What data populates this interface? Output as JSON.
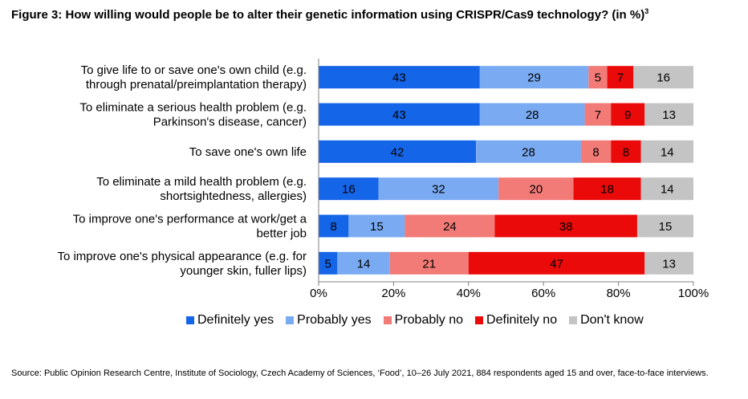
{
  "figure": {
    "title": "Figure 3: How willing would people be to alter their genetic information using CRISPR/Cas9 technology? (in %)",
    "title_sup": "3",
    "source": "Source: Public Opinion Research Centre, Institute of Sociology, Czech Academy of Sciences, ‘Food’, 10–26 July 2021, 884 respondents aged 15 and over, face-to-face interviews."
  },
  "chart_data": {
    "type": "bar",
    "orientation": "horizontal",
    "stacked": true,
    "categories": [
      [
        "To give life to or save one's own child (e.g.",
        "through prenatal/preimplantation therapy)"
      ],
      [
        "To eliminate a serious health problem (e.g.",
        "Parkinson's disease, cancer)"
      ],
      [
        "To save one's own life"
      ],
      [
        "To eliminate a mild health problem (e.g.",
        "shortsightedness, allergies)"
      ],
      [
        "To improve one's performance at work/get a",
        "better job"
      ],
      [
        "To improve one's physical appearance (e.g. for",
        "younger skin, fuller lips)"
      ]
    ],
    "series": [
      {
        "name": "Definitely yes",
        "color": "#1565e8",
        "values": [
          43,
          43,
          42,
          16,
          8,
          5
        ]
      },
      {
        "name": "Probably yes",
        "color": "#7aaaf2",
        "values": [
          29,
          28,
          28,
          32,
          15,
          14
        ]
      },
      {
        "name": "Probably no",
        "color": "#f27a77",
        "values": [
          5,
          7,
          8,
          20,
          24,
          21
        ]
      },
      {
        "name": "Definitely no",
        "color": "#ea0a0a",
        "values": [
          7,
          9,
          8,
          18,
          38,
          47
        ]
      },
      {
        "name": "Don't know",
        "color": "#c4c4c4",
        "values": [
          16,
          13,
          14,
          14,
          15,
          13
        ]
      }
    ],
    "xlim": [
      0,
      100
    ],
    "xticks": [
      "0%",
      "20%",
      "40%",
      "60%",
      "80%",
      "100%"
    ],
    "grid": false,
    "legend": "bottom"
  }
}
